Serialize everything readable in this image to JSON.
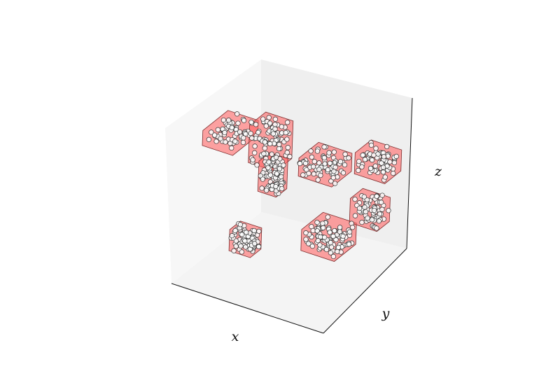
{
  "chart_data": {
    "type": "scatter",
    "subtype": "3d-scatter-with-convex-hulls",
    "title": "",
    "xlabel": "x",
    "ylabel": "y",
    "zlabel": "z",
    "grid": false,
    "legend": "none",
    "pane_colors": {
      "floor": "#f4f4f4",
      "back_left": "#f7f7f7",
      "back_right": "#f0f0f0"
    },
    "hull_color": "#ff6666",
    "hull_edge_color": "#7a2a2a",
    "marker_face": "#ffffff",
    "marker_edge": "#333333",
    "clusters": [
      {
        "name": "",
        "center": [
          0.12,
          0.4,
          0.85
        ],
        "size": [
          0.2,
          0.28,
          0.1
        ],
        "points": 60,
        "hull": true
      },
      {
        "name": "",
        "center": [
          0.3,
          0.55,
          0.78
        ],
        "size": [
          0.18,
          0.18,
          0.25
        ],
        "points": 90,
        "hull": true
      },
      {
        "name": "",
        "center": [
          0.35,
          0.5,
          0.6
        ],
        "size": [
          0.12,
          0.12,
          0.2
        ],
        "points": 90,
        "hull": true
      },
      {
        "name": "",
        "center": [
          0.62,
          0.62,
          0.7
        ],
        "size": [
          0.22,
          0.22,
          0.12
        ],
        "points": 80,
        "hull": true
      },
      {
        "name": "",
        "center": [
          0.85,
          0.82,
          0.7
        ],
        "size": [
          0.2,
          0.18,
          0.14
        ],
        "points": 70,
        "hull": true
      },
      {
        "name": "",
        "center": [
          0.3,
          0.3,
          0.25
        ],
        "size": [
          0.14,
          0.12,
          0.14
        ],
        "points": 80,
        "hull": true
      },
      {
        "name": "",
        "center": [
          0.7,
          0.55,
          0.28
        ],
        "size": [
          0.22,
          0.24,
          0.14
        ],
        "points": 100,
        "hull": true
      },
      {
        "name": "",
        "center": [
          0.82,
          0.8,
          0.38
        ],
        "size": [
          0.18,
          0.14,
          0.16
        ],
        "points": 70,
        "hull": true
      }
    ]
  }
}
